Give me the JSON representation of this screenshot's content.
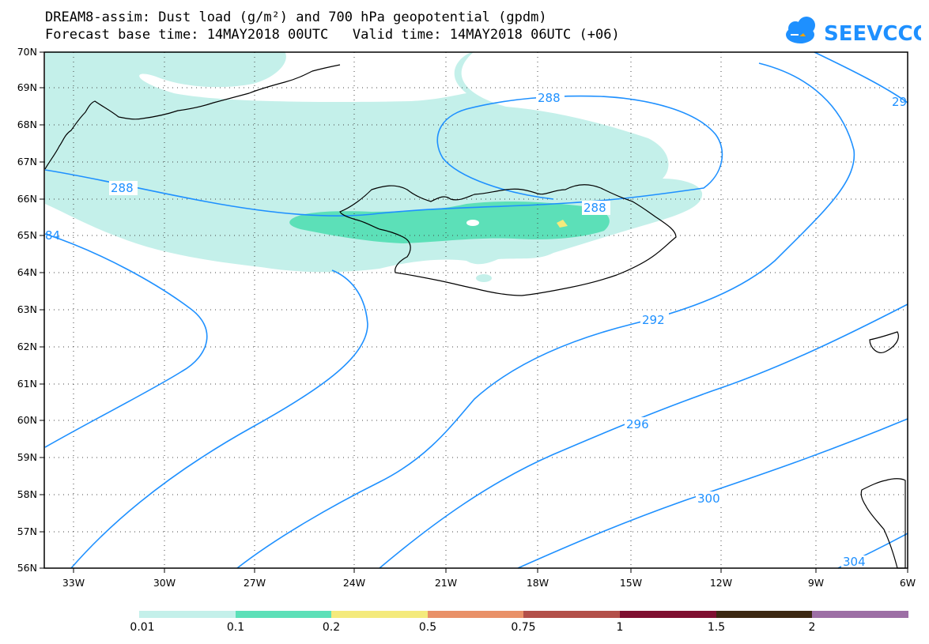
{
  "header": {
    "title_line1": "DREAM8-assim: Dust load (g/m²) and 700 hPa geopotential (gpdm)",
    "title_line2": "Forecast base time: 14MAY2018 00UTC   Valid time: 14MAY2018 06UTC (+06)"
  },
  "logo": {
    "text": "SEEVCCC",
    "icon": "cloud-icon",
    "color": "#1e90ff"
  },
  "map": {
    "lon_labels": [
      "33W",
      "30W",
      "27W",
      "24W",
      "21W",
      "18W",
      "15W",
      "12W",
      "9W",
      "6W"
    ],
    "lat_labels": [
      "70N",
      "69N",
      "68N",
      "67N",
      "66N",
      "65N",
      "64N",
      "63N",
      "62N",
      "61N",
      "60N",
      "59N",
      "58N",
      "57N",
      "56N"
    ],
    "contour_labels": [
      "288",
      "288",
      "288",
      "292",
      "296",
      "300",
      "304",
      "84",
      "29"
    ],
    "contour_color": "#1e90ff",
    "coastline_color": "#000000"
  },
  "colorbar": {
    "levels": [
      "0.01",
      "0.1",
      "0.2",
      "0.5",
      "0.75",
      "1",
      "1.5",
      "2"
    ],
    "colors": [
      "#c4f0ea",
      "#5ce0b8",
      "#f4ea7c",
      "#e99168",
      "#b3504a",
      "#7e0f30",
      "#3c2812",
      "#9d6fa5"
    ]
  }
}
